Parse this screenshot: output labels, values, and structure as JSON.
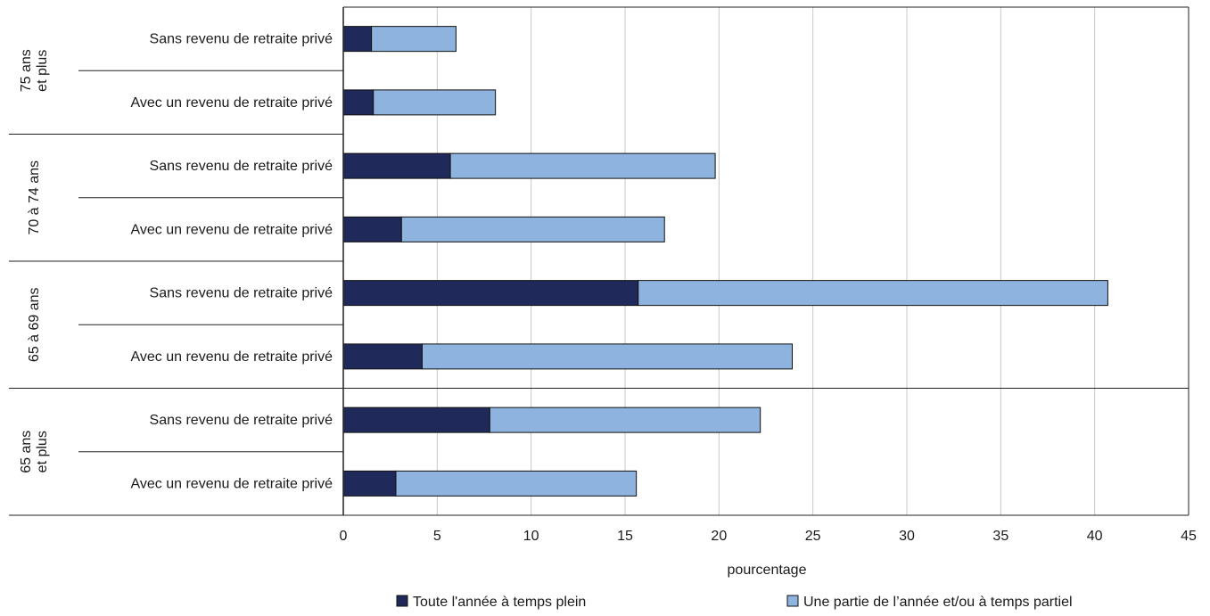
{
  "chart_data": {
    "type": "bar",
    "orientation": "horizontal",
    "stacked": true,
    "xlabel": "pourcentage",
    "xlim": [
      0,
      45
    ],
    "xticks": [
      0,
      5,
      10,
      15,
      20,
      25,
      30,
      35,
      40,
      45
    ],
    "grid": "vertical",
    "legend_position": "bottom",
    "groups": [
      {
        "label": [
          "75 ans",
          "et plus"
        ],
        "categories": [
          "Sans revenu de retraite privé",
          "Avec un revenu de retraite privé"
        ]
      },
      {
        "label": [
          "70 à 74 ans"
        ],
        "categories": [
          "Sans revenu de retraite privé",
          "Avec un revenu de retraite privé"
        ]
      },
      {
        "label": [
          "65 à 69 ans"
        ],
        "categories": [
          "Sans revenu de retraite privé",
          "Avec un revenu de retraite privé"
        ]
      },
      {
        "label": [
          "65 ans",
          "et plus"
        ],
        "categories": [
          "Sans revenu de retraite privé",
          "Avec un revenu de retraite privé"
        ]
      }
    ],
    "series": [
      {
        "name": "Toute l'année à temps plein",
        "color": "#1f2a5a",
        "values": [
          1.5,
          1.6,
          5.7,
          3.1,
          15.7,
          4.2,
          7.8,
          2.8
        ]
      },
      {
        "name": "Une partie de l’année et/ou à temps partiel",
        "color": "#8db3de",
        "values": [
          4.5,
          6.5,
          14.1,
          14.0,
          25.0,
          19.7,
          14.4,
          12.8
        ]
      }
    ]
  }
}
